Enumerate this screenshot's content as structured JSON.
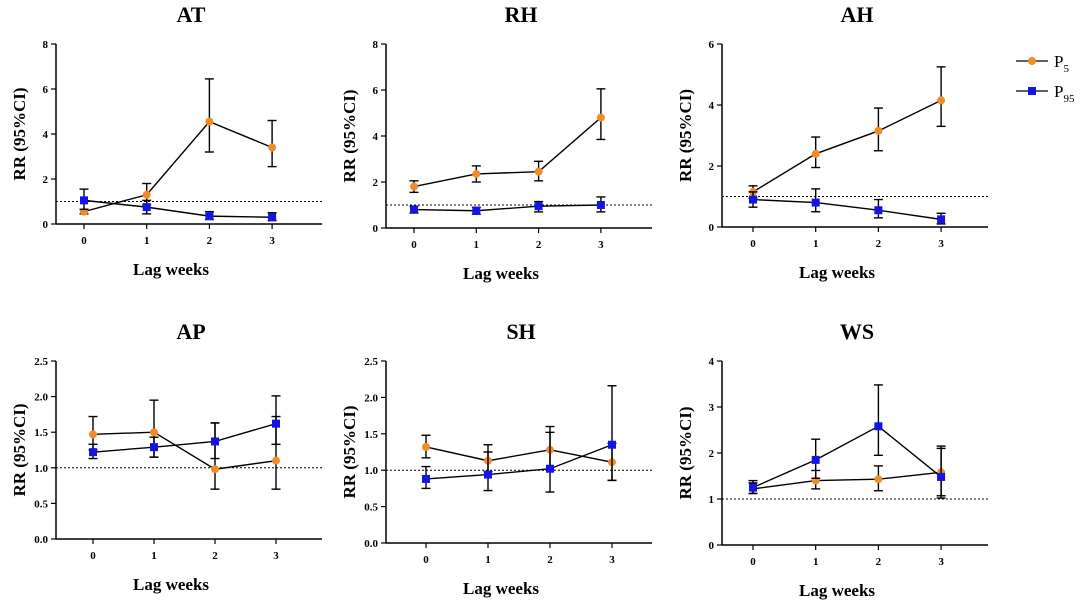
{
  "legend": {
    "p5": {
      "label": "P",
      "sub": "5"
    },
    "p95": {
      "label": "P",
      "sub": "95"
    }
  },
  "colors": {
    "p5": "#F28C28",
    "p95": "#1414E6",
    "axis": "#000000",
    "errorbar": "#000000",
    "line": "#000000",
    "reference": "#000000"
  },
  "chart_data": [
    {
      "type": "line",
      "title": "AT",
      "xlabel": "Lag weeks",
      "ylabel": "RR (95%CI)",
      "x": [
        0,
        1,
        2,
        3
      ],
      "ylim": [
        0,
        8
      ],
      "yticks": [
        "0",
        "2",
        "4",
        "6",
        "8"
      ],
      "reference_line": 1,
      "series": [
        {
          "name": "P5",
          "values": [
            0.55,
            1.3,
            4.55,
            3.4
          ],
          "ci_low": [
            0.45,
            0.85,
            3.2,
            2.55
          ],
          "ci_high": [
            0.65,
            1.8,
            6.45,
            4.6
          ]
        },
        {
          "name": "P95",
          "values": [
            1.05,
            0.75,
            0.35,
            0.3
          ],
          "ci_low": [
            0.65,
            0.45,
            0.2,
            0.15
          ],
          "ci_high": [
            1.55,
            1.05,
            0.55,
            0.5
          ]
        }
      ]
    },
    {
      "type": "line",
      "title": "RH",
      "xlabel": "Lag weeks",
      "ylabel": "RR (95%CI)",
      "x": [
        0,
        1,
        2,
        3
      ],
      "ylim": [
        0,
        8
      ],
      "yticks": [
        "0",
        "2",
        "4",
        "6",
        "8"
      ],
      "reference_line": 1,
      "series": [
        {
          "name": "P5",
          "values": [
            1.8,
            2.35,
            2.45,
            4.8
          ],
          "ci_low": [
            1.55,
            2.0,
            2.05,
            3.85
          ],
          "ci_high": [
            2.05,
            2.7,
            2.9,
            6.05
          ]
        },
        {
          "name": "P95",
          "values": [
            0.8,
            0.75,
            0.95,
            1.0
          ],
          "ci_low": [
            0.65,
            0.6,
            0.7,
            0.7
          ],
          "ci_high": [
            0.95,
            0.9,
            1.15,
            1.35
          ]
        }
      ]
    },
    {
      "type": "line",
      "title": "AH",
      "xlabel": "Lag weeks",
      "ylabel": "RR (95%CI)",
      "x": [
        0,
        1,
        2,
        3
      ],
      "ylim": [
        0,
        6
      ],
      "yticks": [
        "0",
        "2",
        "4",
        "6"
      ],
      "reference_line": 1,
      "series": [
        {
          "name": "P5",
          "values": [
            1.15,
            2.4,
            3.15,
            4.15
          ],
          "ci_low": [
            0.95,
            1.95,
            2.5,
            3.3
          ],
          "ci_high": [
            1.35,
            2.95,
            3.9,
            5.25
          ]
        },
        {
          "name": "P95",
          "values": [
            0.9,
            0.8,
            0.55,
            0.25
          ],
          "ci_low": [
            0.65,
            0.5,
            0.3,
            0.1
          ],
          "ci_high": [
            1.15,
            1.25,
            0.9,
            0.45
          ]
        }
      ]
    },
    {
      "type": "line",
      "title": "AP",
      "xlabel": "Lag weeks",
      "ylabel": "RR (95%CI)",
      "x": [
        0,
        1,
        2,
        3
      ],
      "ylim": [
        0,
        2.5
      ],
      "yticks": [
        "0.0",
        "0.5",
        "1.0",
        "1.5",
        "2.0",
        "2.5"
      ],
      "reference_line": 1,
      "series": [
        {
          "name": "P5",
          "values": [
            1.47,
            1.5,
            0.98,
            1.1
          ],
          "ci_low": [
            1.25,
            1.15,
            0.7,
            0.7
          ],
          "ci_high": [
            1.72,
            1.95,
            1.63,
            1.72
          ]
        },
        {
          "name": "P95",
          "values": [
            1.22,
            1.29,
            1.37,
            1.62
          ],
          "ci_low": [
            1.13,
            1.15,
            1.13,
            1.33
          ],
          "ci_high": [
            1.33,
            1.43,
            1.63,
            2.01
          ]
        }
      ]
    },
    {
      "type": "line",
      "title": "SH",
      "xlabel": "Lag weeks",
      "ylabel": "RR (95%CI)",
      "x": [
        0,
        1,
        2,
        3
      ],
      "ylim": [
        0,
        2.5
      ],
      "yticks": [
        "0.0",
        "0.5",
        "1.0",
        "1.5",
        "2.0",
        "2.5"
      ],
      "reference_line": 1,
      "series": [
        {
          "name": "P5",
          "values": [
            1.32,
            1.13,
            1.28,
            1.11
          ],
          "ci_low": [
            1.17,
            0.98,
            1.0,
            0.86
          ],
          "ci_high": [
            1.48,
            1.35,
            1.6,
            1.37
          ]
        },
        {
          "name": "P95",
          "values": [
            0.88,
            0.94,
            1.02,
            1.35
          ],
          "ci_low": [
            0.75,
            0.72,
            0.7,
            0.86
          ],
          "ci_high": [
            1.05,
            1.25,
            1.52,
            2.16
          ]
        }
      ]
    },
    {
      "type": "line",
      "title": "WS",
      "xlabel": "Lag weeks",
      "ylabel": "RR (95%CI)",
      "x": [
        0,
        1,
        2,
        3
      ],
      "ylim": [
        0,
        4
      ],
      "yticks": [
        "0",
        "1",
        "2",
        "3",
        "4"
      ],
      "reference_line": 1,
      "series": [
        {
          "name": "P5",
          "values": [
            1.22,
            1.4,
            1.43,
            1.58
          ],
          "ci_low": [
            1.12,
            1.22,
            1.18,
            1.07
          ],
          "ci_high": [
            1.35,
            1.62,
            1.72,
            2.1
          ]
        },
        {
          "name": "P95",
          "values": [
            1.25,
            1.85,
            2.58,
            1.48
          ],
          "ci_low": [
            1.12,
            1.45,
            1.95,
            1.02
          ],
          "ci_high": [
            1.4,
            2.3,
            3.48,
            2.15
          ]
        }
      ]
    }
  ]
}
